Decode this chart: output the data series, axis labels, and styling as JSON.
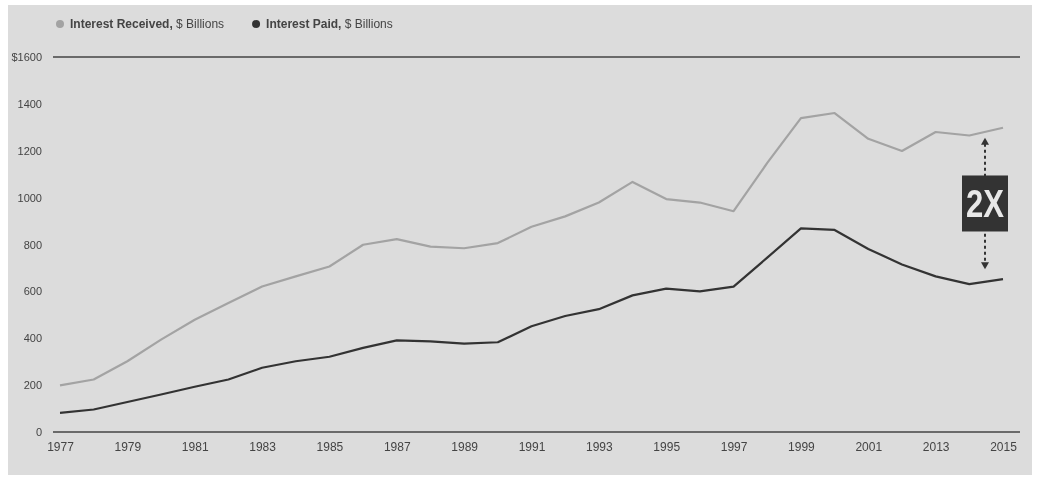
{
  "chart_data": {
    "type": "line",
    "categories": [
      "1977",
      null,
      "1979",
      null,
      "1981",
      null,
      "1983",
      null,
      "1985",
      null,
      "1987",
      null,
      "1989",
      null,
      "1991",
      null,
      "1993",
      null,
      "1995",
      null,
      "1997",
      null,
      "1999",
      null,
      "2001",
      null,
      "2013",
      null,
      "2015"
    ],
    "series": [
      {
        "name": "Interest Received, $ Billions",
        "color": "#a3a3a3",
        "values": [
          199,
          224,
          302,
          394,
          479,
          550,
          621,
          664,
          706,
          799,
          823,
          791,
          784,
          806,
          876,
          920,
          979,
          1067,
          994,
          979,
          942,
          1148,
          1339,
          1361,
          1251,
          1199,
          1280,
          1265,
          1298
        ]
      },
      {
        "name": "Interest Paid, $ Billions",
        "color": "#333333",
        "values": [
          82,
          96,
          128,
          160,
          193,
          224,
          274,
          302,
          321,
          359,
          391,
          387,
          377,
          383,
          451,
          495,
          524,
          583,
          612,
          600,
          620,
          744,
          869,
          862,
          781,
          715,
          664,
          631,
          652
        ]
      }
    ],
    "ylim": [
      0,
      1600
    ],
    "yticks": [
      0,
      200,
      400,
      600,
      800,
      1000,
      1200,
      1400,
      {
        "value": 1600,
        "label": "$1600"
      }
    ],
    "grid": false,
    "legend": "top left",
    "marker": "none",
    "line_style": "solid",
    "annotations": [
      "2X"
    ]
  }
}
